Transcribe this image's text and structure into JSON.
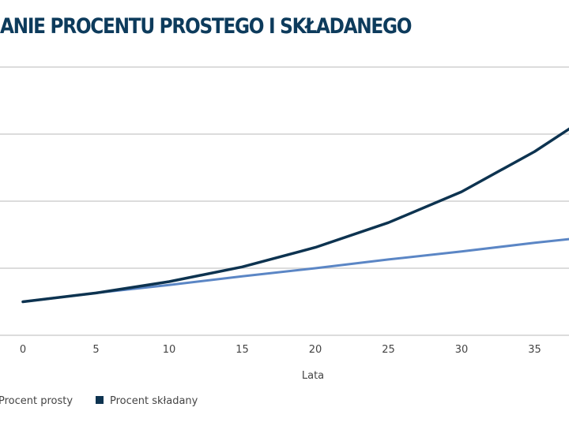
{
  "chart_data": {
    "type": "line",
    "title": "ANIE PROCENTU PROSTEGO I SKŁADANEGO",
    "xlabel": "Lata",
    "ylabel": "",
    "x": [
      0,
      5,
      10,
      15,
      20,
      25,
      30,
      35,
      38.5
    ],
    "xticks": [
      0,
      5,
      10,
      15,
      20,
      25,
      30,
      35
    ],
    "ylim": [
      0,
      4
    ],
    "grid": true,
    "legend_position": "bottom-left",
    "series": [
      {
        "name": "Procent prosty",
        "color": "#5b86c5",
        "values": [
          0.5,
          0.63,
          0.75,
          0.88,
          1.0,
          1.13,
          1.25,
          1.38,
          1.46
        ]
      },
      {
        "name": "Procent składany",
        "color": "#0d3350",
        "values": [
          0.5,
          0.63,
          0.8,
          1.02,
          1.31,
          1.68,
          2.14,
          2.74,
          3.24
        ]
      }
    ]
  }
}
